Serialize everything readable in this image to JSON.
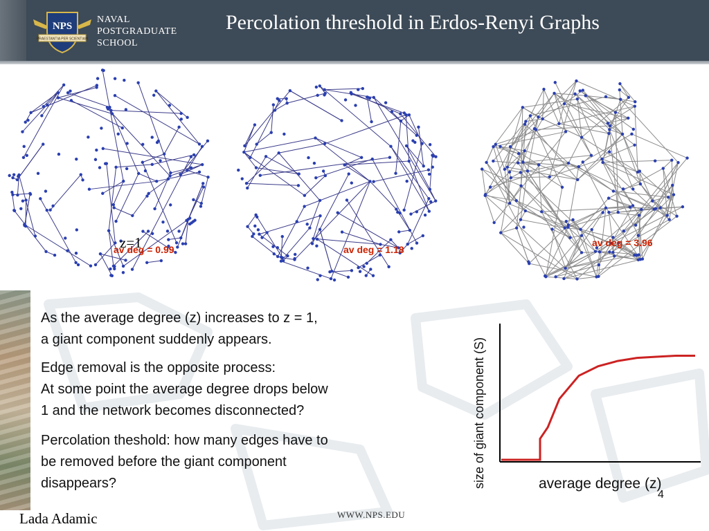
{
  "header": {
    "logo_badge": "NPS",
    "logo_motto": "PRAESTANTIA PER SCIENTIAM",
    "logo_lines": [
      "NAVAL",
      "POSTGRADUATE",
      "SCHOOL"
    ],
    "title": "Percolation threshold in Erdos-Renyi Graphs"
  },
  "graphs": [
    {
      "label": "av deg = 0.99",
      "annotation": "z=1"
    },
    {
      "label": "av deg = 1.18"
    },
    {
      "label": "av deg = 3.96"
    }
  ],
  "body_text": {
    "para1": [
      "As the average degree (z) increases to z = 1,",
      "a giant component suddenly appears."
    ],
    "para2": [
      "Edge removal is the opposite process:",
      "At some point the average degree drops below",
      "1 and the network becomes disconnected?"
    ],
    "para3": [
      "Percolation theshold: how many edges have to",
      "be removed before the giant component",
      "disappears?"
    ]
  },
  "chart_data": {
    "type": "line",
    "title": "",
    "xlabel": "average degree (z)",
    "ylabel": "size of giant component (S)",
    "series": [
      {
        "x": [
          0,
          1,
          1,
          1.2,
          1.5,
          2,
          2.5,
          3,
          3.5,
          4,
          4.5,
          5
        ],
        "y": [
          0,
          0,
          0.2,
          0.31,
          0.58,
          0.8,
          0.89,
          0.94,
          0.97,
          0.98,
          0.99,
          0.99
        ],
        "color": "#cc2222"
      }
    ],
    "xlim": [
      0,
      5
    ],
    "ylim": [
      0,
      1
    ],
    "grid": false
  },
  "footer": {
    "author": "Lada Adamic",
    "website": "WWW.NPS.EDU",
    "page_number": "4"
  }
}
